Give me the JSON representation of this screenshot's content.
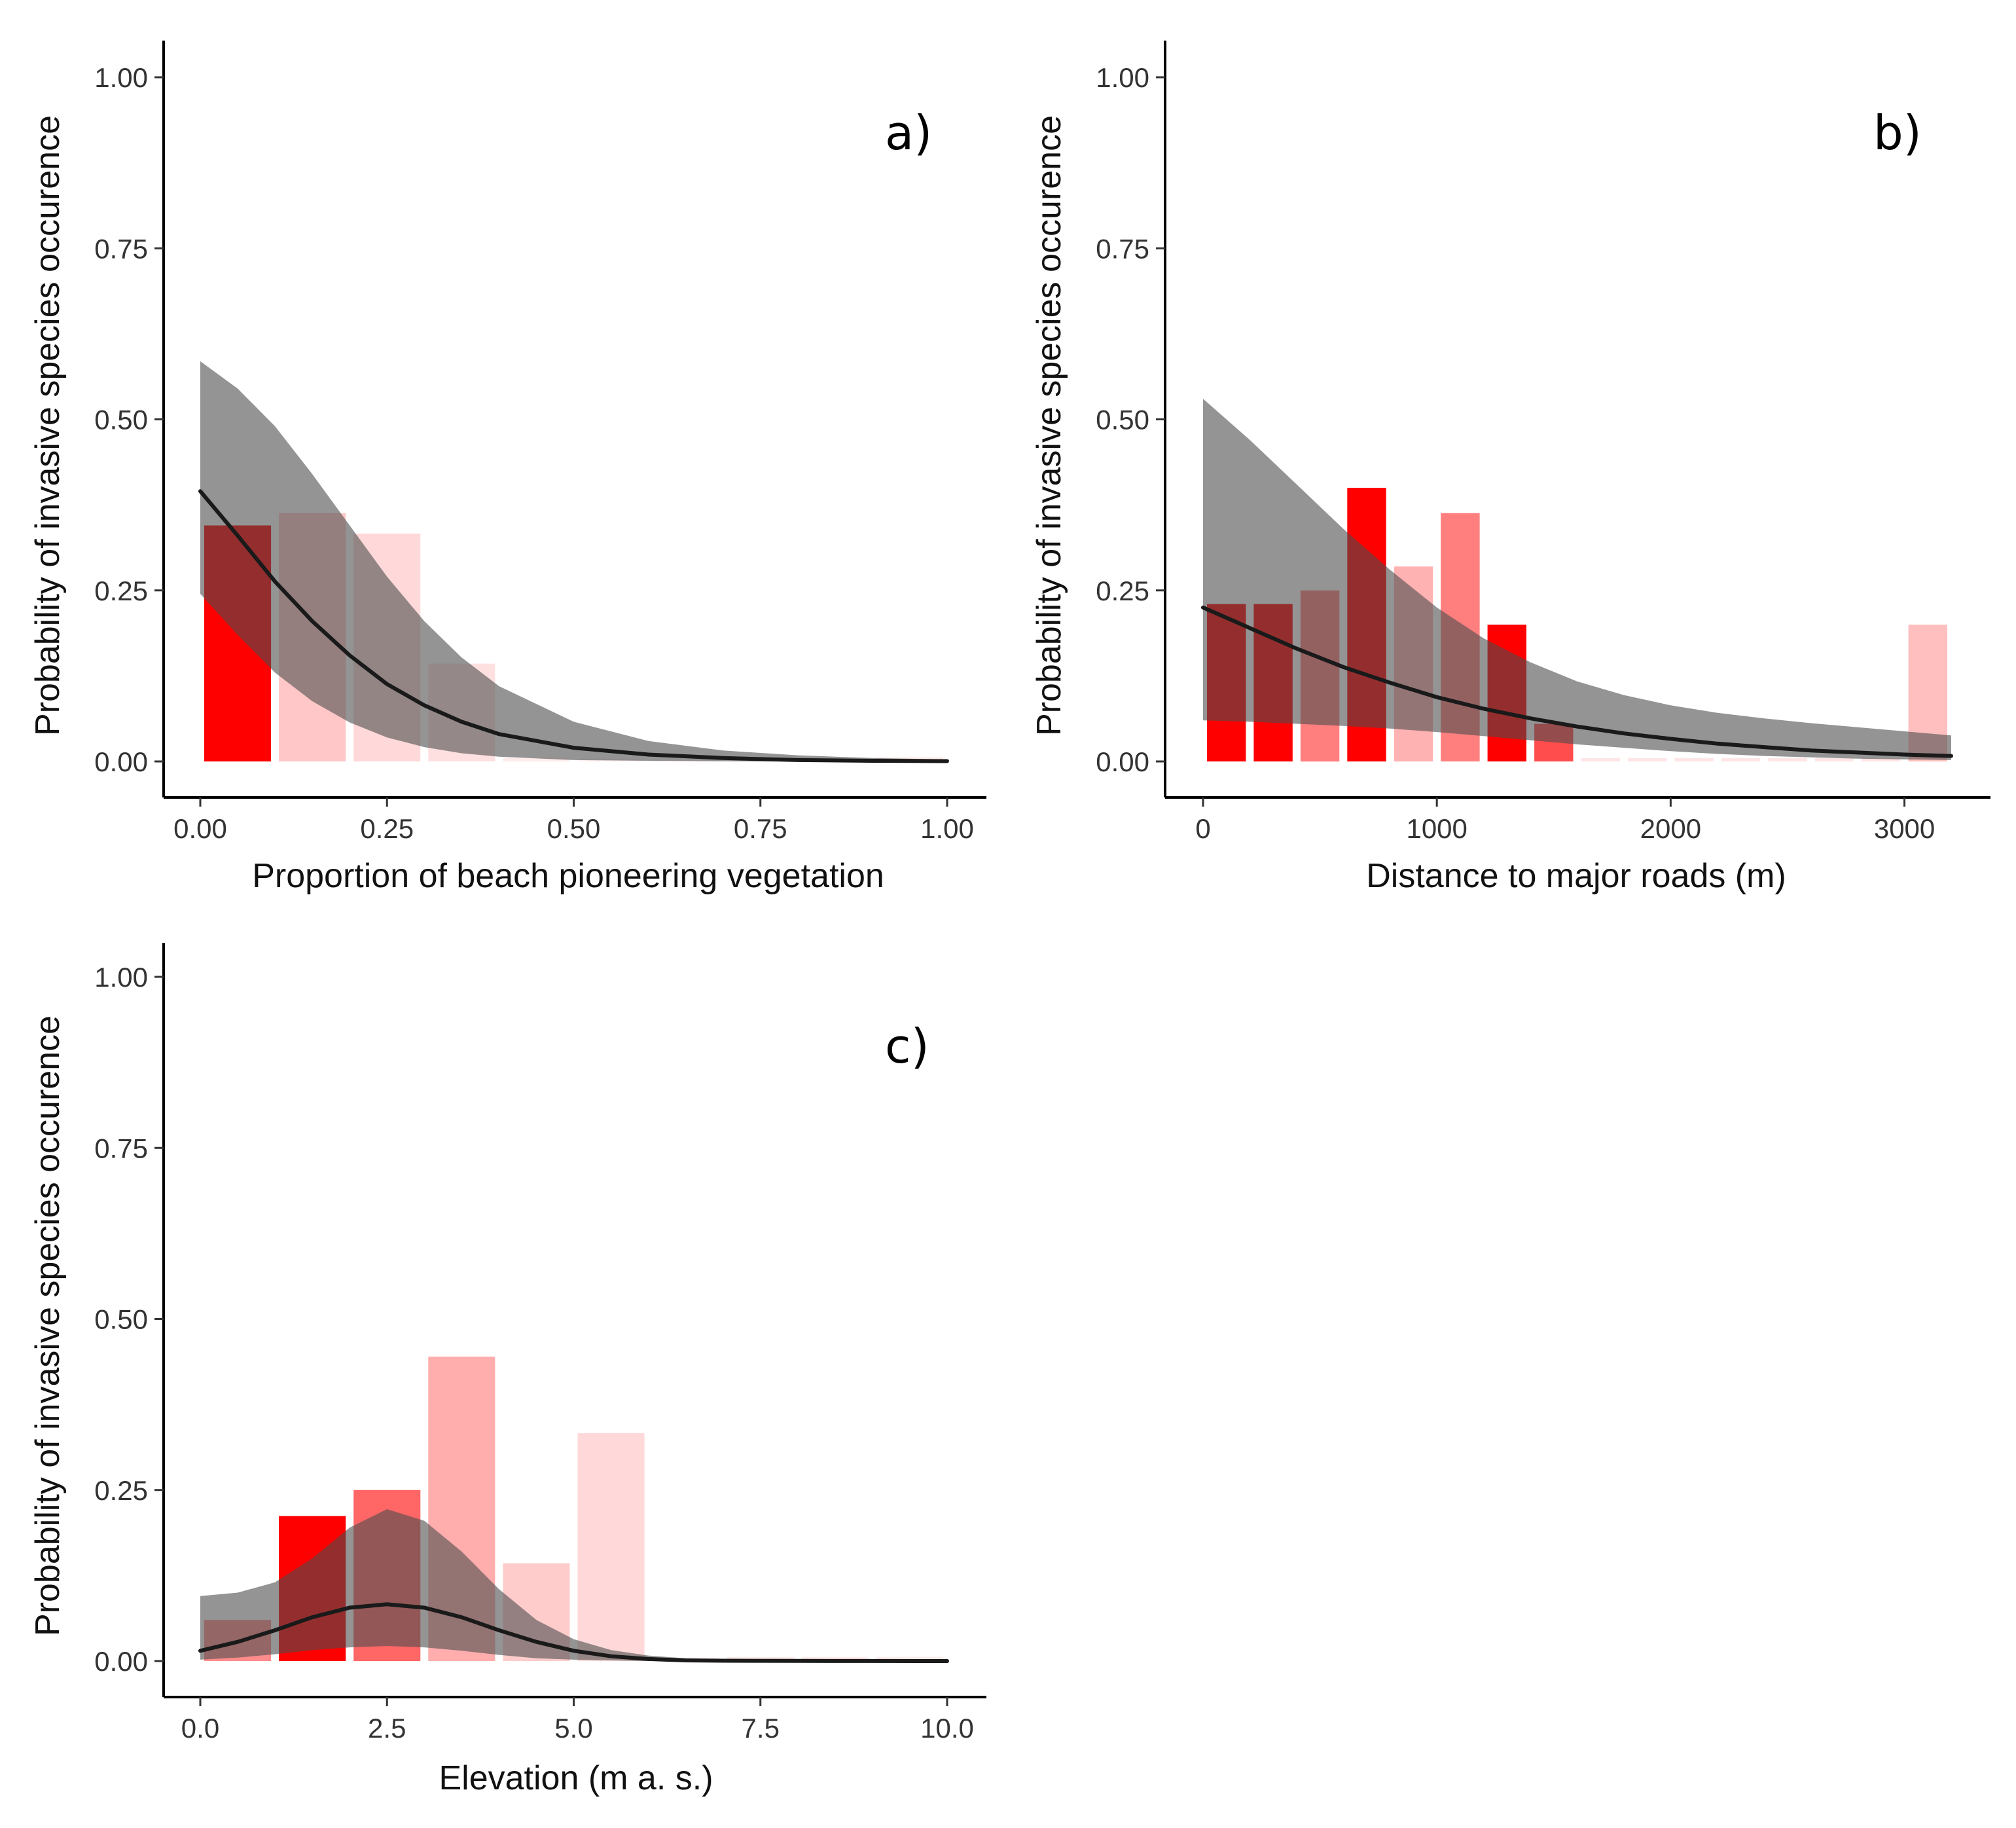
{
  "figure": {
    "background": "#ffffff",
    "ribbon_color": "#4d4d4d",
    "ribbon_opacity": 0.6,
    "line_color": "#1a1a1a",
    "bar_base_color": "#ff0000"
  },
  "chart_data": [
    {
      "id": "a",
      "type": "bar+line",
      "panel_label": "a)",
      "xlabel": "Proportion of beach pioneering vegetation",
      "ylabel": "Probability of invasive species occurence",
      "xlim": [
        0,
        1
      ],
      "ylim": [
        0,
        1
      ],
      "xticks": [
        0,
        0.25,
        0.5,
        0.75,
        1.0
      ],
      "xtick_labels": [
        "0.00",
        "0.25",
        "0.50",
        "0.75",
        "1.00"
      ],
      "yticks": [
        0,
        0.25,
        0.5,
        0.75,
        1.0
      ],
      "ytick_labels": [
        "0.00",
        "0.25",
        "0.50",
        "0.75",
        "1.00"
      ],
      "grid": false,
      "bars": [
        {
          "x0": 0.0,
          "x1": 0.1,
          "value": 0.345,
          "opacity": 1.0
        },
        {
          "x0": 0.1,
          "x1": 0.2,
          "value": 0.363,
          "opacity": 0.22
        },
        {
          "x0": 0.2,
          "x1": 0.3,
          "value": 0.333,
          "opacity": 0.15
        },
        {
          "x0": 0.3,
          "x1": 0.4,
          "value": 0.143,
          "opacity": 0.12
        },
        {
          "x0": 0.4,
          "x1": 0.5,
          "value": 0.005,
          "opacity": 0.08
        },
        {
          "x0": 0.5,
          "x1": 0.6,
          "value": 0.004,
          "opacity": 0.06
        },
        {
          "x0": 0.6,
          "x1": 0.7,
          "value": 0.003,
          "opacity": 0.05
        },
        {
          "x0": 0.7,
          "x1": 0.8,
          "value": 0.003,
          "opacity": 0.05
        },
        {
          "x0": 0.8,
          "x1": 0.9,
          "value": 0.003,
          "opacity": 0.05
        },
        {
          "x0": 0.9,
          "x1": 1.0,
          "value": 0.006,
          "opacity": 0.08
        }
      ],
      "fit": {
        "x": [
          0.0,
          0.05,
          0.1,
          0.15,
          0.2,
          0.25,
          0.3,
          0.35,
          0.4,
          0.5,
          0.6,
          0.7,
          0.8,
          0.9,
          1.0
        ],
        "y": [
          0.395,
          0.33,
          0.263,
          0.205,
          0.155,
          0.113,
          0.082,
          0.058,
          0.04,
          0.02,
          0.01,
          0.005,
          0.002,
          0.001,
          0.0005
        ],
        "lower": [
          0.245,
          0.185,
          0.13,
          0.088,
          0.057,
          0.035,
          0.021,
          0.012,
          0.007,
          0.002,
          0.001,
          0.0003,
          0.0001,
          0.0,
          0.0
        ],
        "upper": [
          0.585,
          0.545,
          0.49,
          0.42,
          0.345,
          0.27,
          0.205,
          0.152,
          0.11,
          0.058,
          0.03,
          0.016,
          0.009,
          0.005,
          0.003
        ]
      }
    },
    {
      "id": "b",
      "type": "bar+line",
      "panel_label": "b)",
      "xlabel": "Distance to major roads (m)",
      "ylabel": "Probability of invasive species occurence",
      "xlim": [
        0,
        3200
      ],
      "ylim": [
        0,
        1
      ],
      "xticks": [
        0,
        1000,
        2000,
        3000
      ],
      "xtick_labels": [
        "0",
        "1000",
        "2000",
        "3000"
      ],
      "yticks": [
        0,
        0.25,
        0.5,
        0.75,
        1.0
      ],
      "ytick_labels": [
        "0.00",
        "0.25",
        "0.50",
        "0.75",
        "1.00"
      ],
      "grid": false,
      "bars": [
        {
          "x0": 0,
          "x1": 200,
          "value": 0.23,
          "opacity": 1.0
        },
        {
          "x0": 200,
          "x1": 400,
          "value": 0.23,
          "opacity": 1.0
        },
        {
          "x0": 400,
          "x1": 600,
          "value": 0.25,
          "opacity": 0.5
        },
        {
          "x0": 600,
          "x1": 800,
          "value": 0.4,
          "opacity": 1.0
        },
        {
          "x0": 800,
          "x1": 1000,
          "value": 0.285,
          "opacity": 0.3
        },
        {
          "x0": 1000,
          "x1": 1200,
          "value": 0.363,
          "opacity": 0.5
        },
        {
          "x0": 1200,
          "x1": 1400,
          "value": 0.2,
          "opacity": 1.0
        },
        {
          "x0": 1400,
          "x1": 1600,
          "value": 0.055,
          "opacity": 0.7
        },
        {
          "x0": 1600,
          "x1": 1800,
          "value": 0.005,
          "opacity": 0.1
        },
        {
          "x0": 1800,
          "x1": 2000,
          "value": 0.005,
          "opacity": 0.1
        },
        {
          "x0": 2000,
          "x1": 2200,
          "value": 0.005,
          "opacity": 0.1
        },
        {
          "x0": 2200,
          "x1": 2400,
          "value": 0.005,
          "opacity": 0.1
        },
        {
          "x0": 2400,
          "x1": 2600,
          "value": 0.005,
          "opacity": 0.1
        },
        {
          "x0": 2600,
          "x1": 2800,
          "value": 0.005,
          "opacity": 0.1
        },
        {
          "x0": 2800,
          "x1": 3000,
          "value": 0.005,
          "opacity": 0.1
        },
        {
          "x0": 3000,
          "x1": 3200,
          "value": 0.2,
          "opacity": 0.25
        }
      ],
      "fit": {
        "x": [
          0,
          200,
          400,
          600,
          800,
          1000,
          1200,
          1400,
          1600,
          1800,
          2000,
          2200,
          2400,
          2600,
          2800,
          3000,
          3200
        ],
        "y": [
          0.225,
          0.195,
          0.165,
          0.138,
          0.115,
          0.094,
          0.077,
          0.063,
          0.051,
          0.041,
          0.033,
          0.026,
          0.021,
          0.016,
          0.013,
          0.01,
          0.008
        ],
        "lower": [
          0.06,
          0.058,
          0.055,
          0.052,
          0.048,
          0.043,
          0.037,
          0.031,
          0.025,
          0.02,
          0.015,
          0.011,
          0.008,
          0.006,
          0.004,
          0.003,
          0.002
        ],
        "upper": [
          0.53,
          0.47,
          0.405,
          0.34,
          0.28,
          0.225,
          0.18,
          0.145,
          0.117,
          0.097,
          0.082,
          0.071,
          0.063,
          0.056,
          0.05,
          0.044,
          0.038
        ]
      }
    },
    {
      "id": "c",
      "type": "bar+line",
      "panel_label": "c)",
      "xlabel": "Elevation (m a. s.)",
      "ylabel": "Probability of invasive species occurence",
      "xlim": [
        0,
        10
      ],
      "ylim": [
        0,
        1
      ],
      "xticks": [
        0,
        2.5,
        5,
        7.5,
        10
      ],
      "xtick_labels": [
        "0.0",
        "2.5",
        "5.0",
        "7.5",
        "10.0"
      ],
      "yticks": [
        0,
        0.25,
        0.5,
        0.75,
        1.0
      ],
      "ytick_labels": [
        "0.00",
        "0.25",
        "0.50",
        "0.75",
        "1.00"
      ],
      "grid": false,
      "bars": [
        {
          "x0": 0,
          "x1": 1,
          "value": 0.06,
          "opacity": 0.45
        },
        {
          "x0": 1,
          "x1": 2,
          "value": 0.212,
          "opacity": 1.0
        },
        {
          "x0": 2,
          "x1": 3,
          "value": 0.25,
          "opacity": 0.6
        },
        {
          "x0": 3,
          "x1": 4,
          "value": 0.445,
          "opacity": 0.32
        },
        {
          "x0": 4,
          "x1": 5,
          "value": 0.143,
          "opacity": 0.2
        },
        {
          "x0": 5,
          "x1": 6,
          "value": 0.333,
          "opacity": 0.15
        },
        {
          "x0": 6,
          "x1": 7,
          "value": 0.005,
          "opacity": 0.06
        },
        {
          "x0": 7,
          "x1": 8,
          "value": 0.006,
          "opacity": 0.08
        },
        {
          "x0": 8,
          "x1": 9,
          "value": 0.006,
          "opacity": 0.08
        },
        {
          "x0": 9,
          "x1": 10,
          "value": 0.006,
          "opacity": 0.08
        }
      ],
      "fit": {
        "x": [
          0.0,
          0.5,
          1.0,
          1.5,
          2.0,
          2.5,
          3.0,
          3.5,
          4.0,
          4.5,
          5.0,
          5.5,
          6.0,
          6.5,
          7.0,
          8.0,
          9.0,
          10.0
        ],
        "y": [
          0.015,
          0.028,
          0.045,
          0.064,
          0.078,
          0.083,
          0.078,
          0.064,
          0.045,
          0.028,
          0.015,
          0.007,
          0.003,
          0.001,
          0.0005,
          0.0002,
          0.0001,
          0.0
        ],
        "lower": [
          0.002,
          0.005,
          0.01,
          0.016,
          0.02,
          0.022,
          0.02,
          0.015,
          0.009,
          0.004,
          0.002,
          0.001,
          0.0,
          0.0,
          0.0,
          0.0,
          0.0,
          0.0
        ],
        "upper": [
          0.095,
          0.1,
          0.115,
          0.15,
          0.195,
          0.222,
          0.205,
          0.16,
          0.105,
          0.06,
          0.032,
          0.016,
          0.008,
          0.004,
          0.002,
          0.001,
          0.0005,
          0.0002
        ]
      }
    }
  ]
}
